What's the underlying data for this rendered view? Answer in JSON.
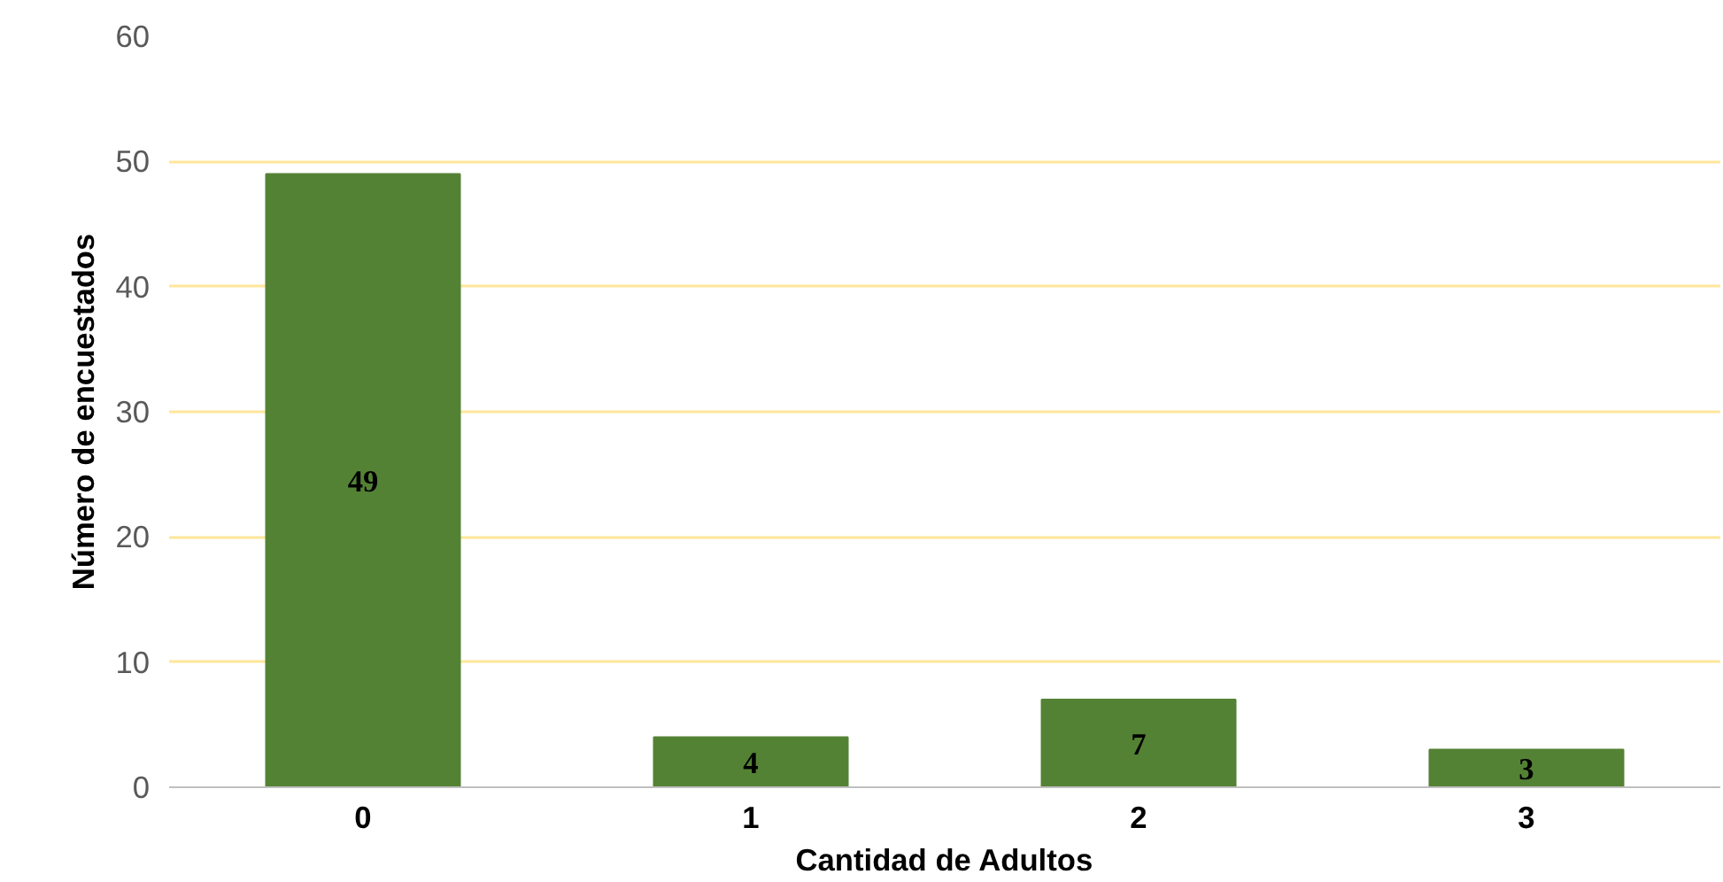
{
  "chart_data": {
    "type": "bar",
    "xlabel": "Cantidad de Adultos",
    "ylabel": "Número de encuestados",
    "categories": [
      "0",
      "1",
      "2",
      "3"
    ],
    "values": [
      49,
      4,
      7,
      3
    ],
    "color": "#548235",
    "ylim": [
      0,
      60
    ],
    "yticks": [
      0,
      10,
      20,
      30,
      40,
      50,
      60
    ],
    "grid": "y",
    "data_labels": true
  }
}
